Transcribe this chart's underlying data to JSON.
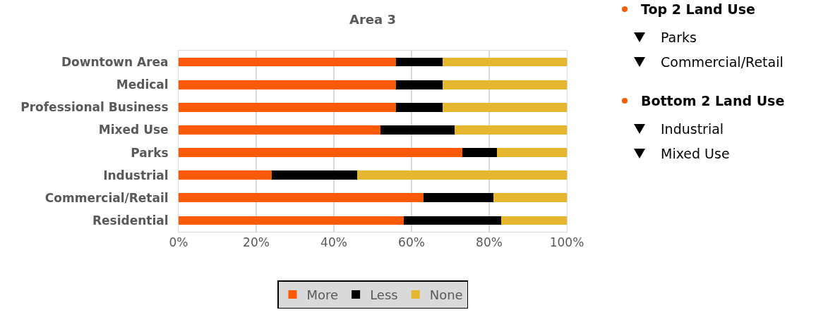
{
  "chart_data": {
    "type": "bar",
    "orientation": "horizontal",
    "stacked": true,
    "title": "Area 3",
    "categories": [
      "Downtown Area",
      "Medical",
      "Professional Business",
      "Mixed Use",
      "Parks",
      "Industrial",
      "Commercial/Retail",
      "Residential"
    ],
    "series": [
      {
        "name": "More",
        "color": "#ff5a00",
        "values": [
          56,
          56,
          56,
          52,
          73,
          24,
          63,
          58
        ]
      },
      {
        "name": "Less",
        "color": "#000000",
        "values": [
          12,
          12,
          12,
          19,
          9,
          22,
          18,
          25
        ]
      },
      {
        "name": "None",
        "color": "#e6b72e",
        "values": [
          32,
          32,
          32,
          29,
          18,
          54,
          19,
          17
        ]
      }
    ],
    "xlim": [
      0,
      100
    ],
    "xticks": [
      {
        "value": 0,
        "label": "0%"
      },
      {
        "value": 20,
        "label": "20%"
      },
      {
        "value": 40,
        "label": "40%"
      },
      {
        "value": 60,
        "label": "60%"
      },
      {
        "value": 80,
        "label": "80%"
      },
      {
        "value": 100,
        "label": "100%"
      }
    ],
    "grid": "x",
    "legend": "bottom",
    "annotations": [
      "Top 2 Land Use",
      "Parks",
      "Commercial/Retail",
      "Bottom 2 Land Use",
      "Industrial",
      "Mixed Use"
    ]
  }
}
